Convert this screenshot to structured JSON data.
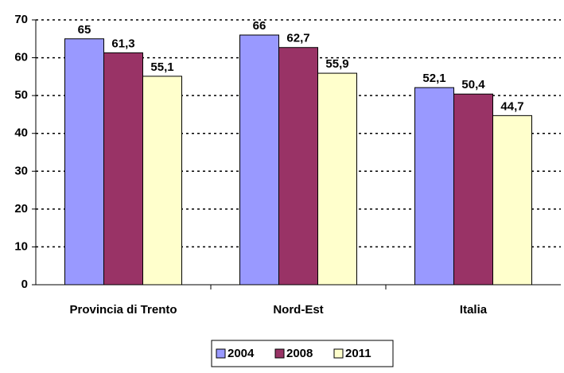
{
  "chart_data": {
    "type": "bar",
    "categories": [
      "Provincia di Trento",
      "Nord-Est",
      "Italia"
    ],
    "series": [
      {
        "name": "2004",
        "color": "#9999ff",
        "values": [
          65,
          66,
          52.1
        ],
        "value_labels": [
          "65",
          "66",
          "52,1"
        ]
      },
      {
        "name": "2008",
        "color": "#993366",
        "values": [
          61.3,
          62.7,
          50.4
        ],
        "value_labels": [
          "61,3",
          "62,7",
          "50,4"
        ]
      },
      {
        "name": "2011",
        "color": "#ffffcc",
        "values": [
          55.1,
          55.9,
          44.7
        ],
        "value_labels": [
          "55,1",
          "55,9",
          "44,7"
        ]
      }
    ],
    "ylim": [
      0,
      70
    ],
    "yticks": [
      0,
      10,
      20,
      30,
      40,
      50,
      60,
      70
    ],
    "grid": true,
    "legend": "bottom"
  }
}
